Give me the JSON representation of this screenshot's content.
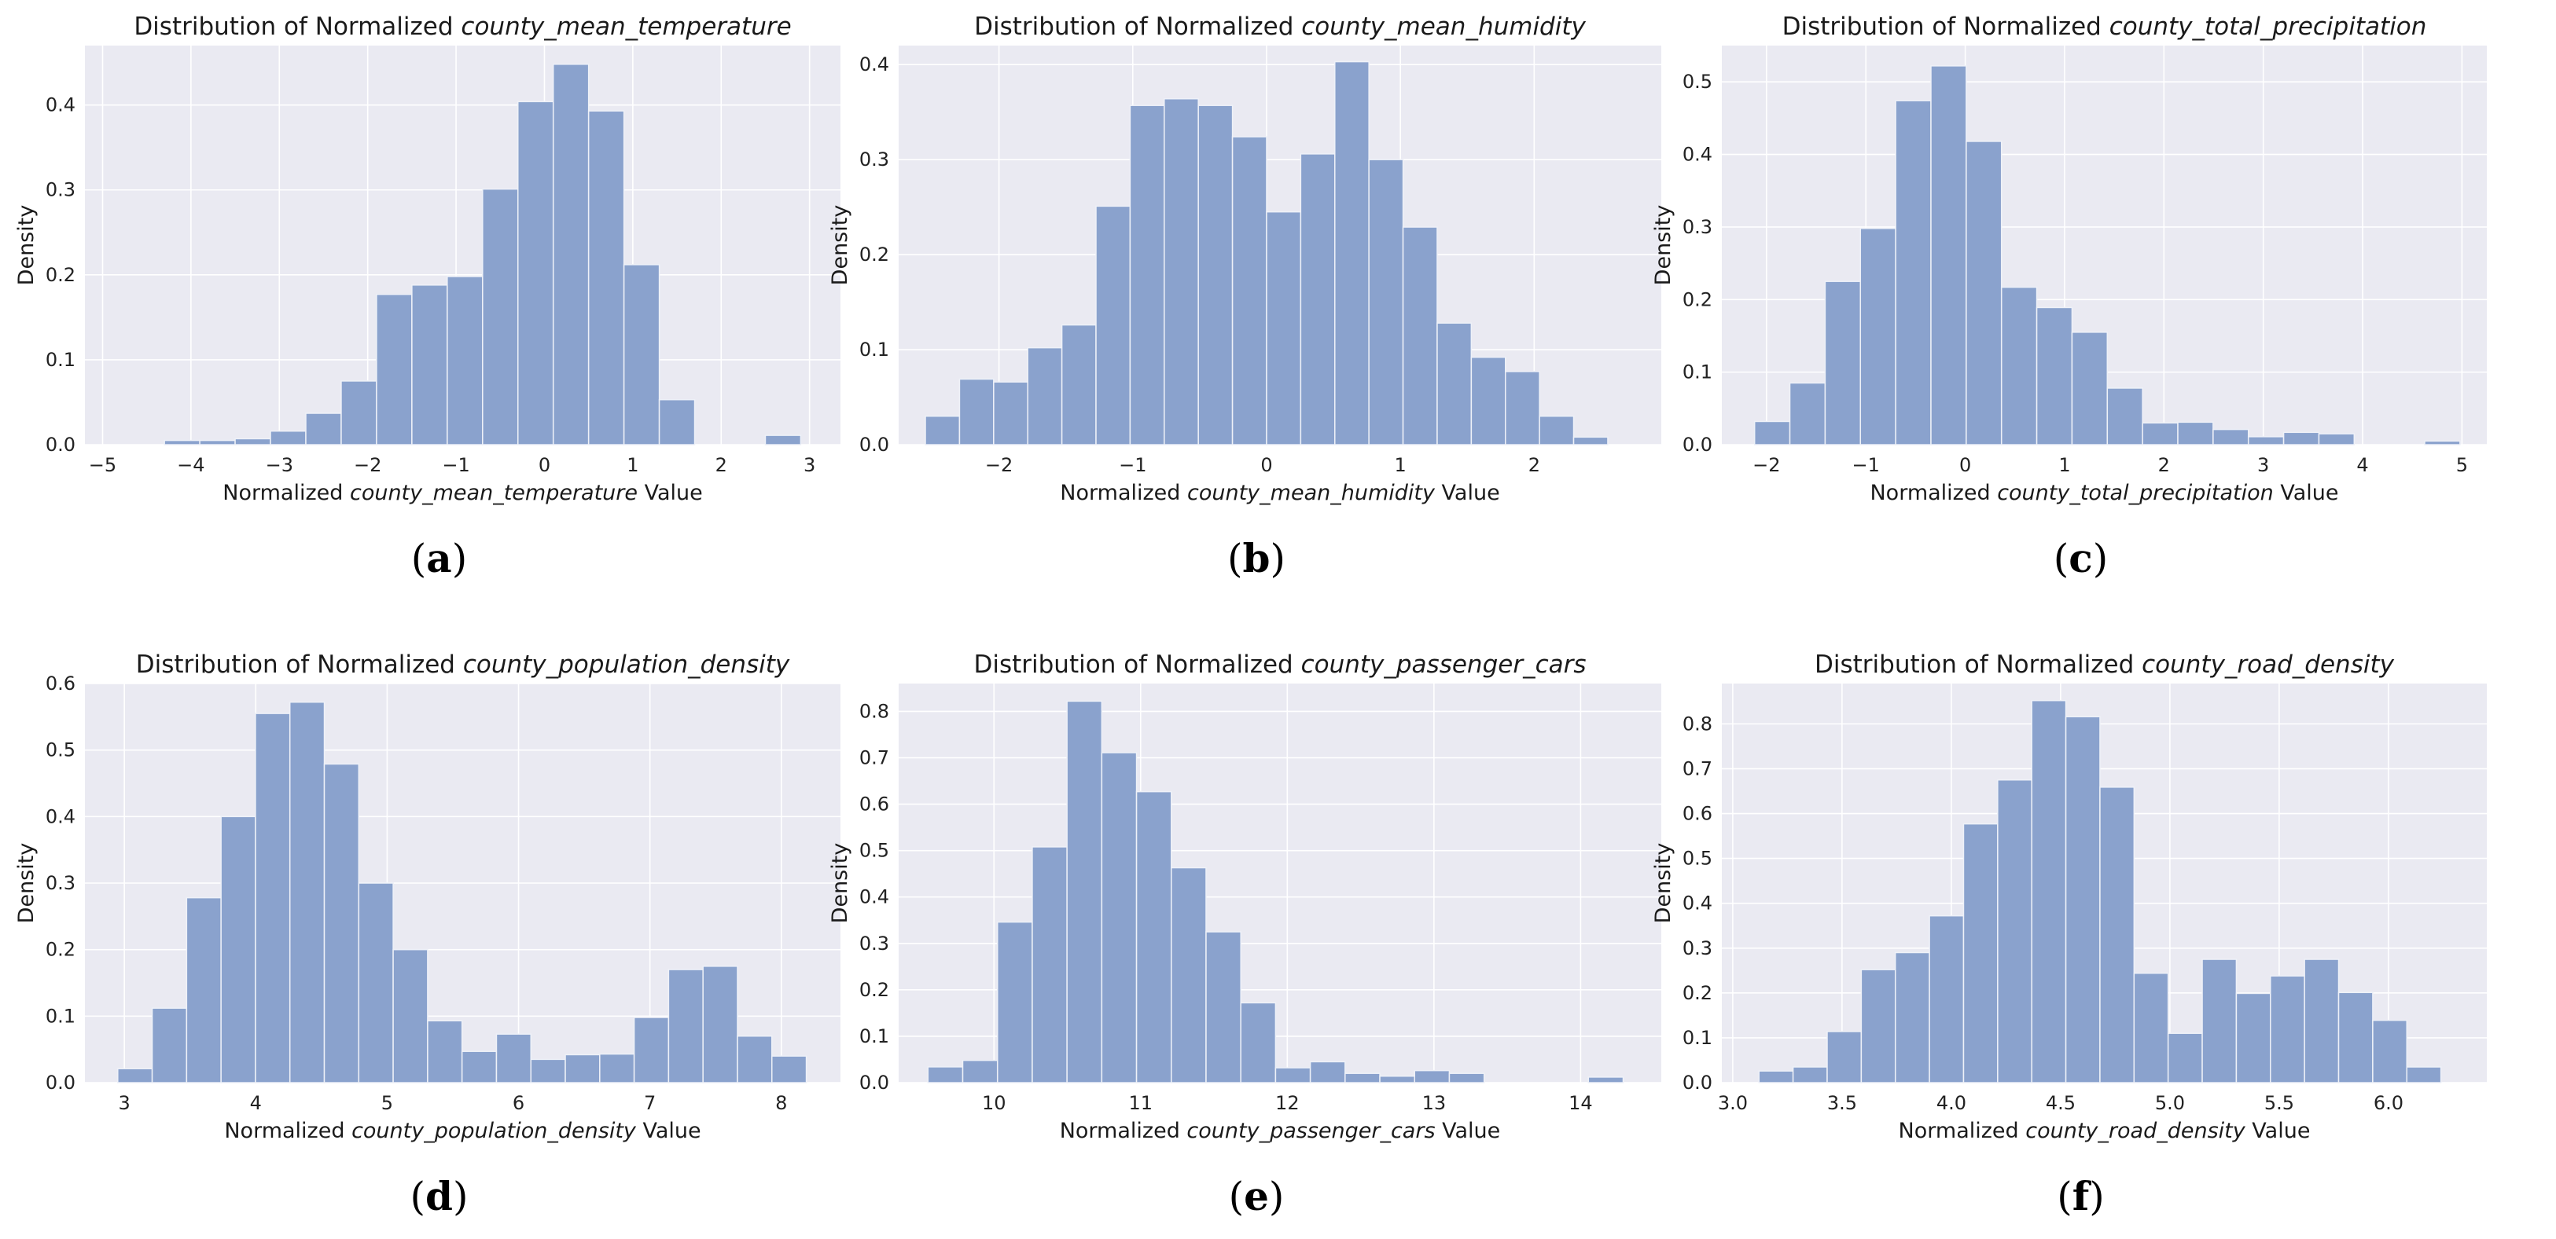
{
  "style": {
    "plot_bg": "#eaeaf2",
    "grid": "#ffffff",
    "bar_fill": "#8aa2cd",
    "bar_edge": "#eef1f8"
  },
  "common": {
    "title_prefix": "Distribution of Normalized ",
    "xlabel_prefix": "Normalized ",
    "xlabel_suffix": " Value",
    "ylabel": "Density"
  },
  "chart_data": [
    {
      "type": "bar",
      "panel": "a",
      "variable": "county_mean_temperature",
      "title": "Distribution of Normalized county_mean_temperature",
      "xlabel": "Normalized county_mean_temperature Value",
      "ylabel": "Density",
      "xlim": [
        -5.2,
        3.35
      ],
      "ylim": [
        0,
        0.47
      ],
      "xticks": [
        -5,
        -4,
        -3,
        -2,
        -1,
        0,
        1,
        2,
        3
      ],
      "yticks": [
        0.0,
        0.1,
        0.2,
        0.3,
        0.4
      ],
      "bin_start": -4.3,
      "bin_width": 0.4,
      "values": [
        0.005,
        0.005,
        0.007,
        0.016,
        0.037,
        0.075,
        0.177,
        0.188,
        0.198,
        0.301,
        0.404,
        0.448,
        0.393,
        0.212,
        0.053,
        0.0,
        0.0,
        0.011
      ]
    },
    {
      "type": "bar",
      "panel": "b",
      "variable": "county_mean_humidity",
      "title": "Distribution of Normalized county_mean_humidity",
      "xlabel": "Normalized county_mean_humidity Value",
      "ylabel": "Density",
      "xlim": [
        -2.75,
        2.95
      ],
      "ylim": [
        0,
        0.42
      ],
      "xticks": [
        -2,
        -1,
        0,
        1,
        2
      ],
      "yticks": [
        0.0,
        0.1,
        0.2,
        0.3,
        0.4
      ],
      "bin_start": -2.55,
      "bin_width": 0.255,
      "values": [
        0.03,
        0.069,
        0.066,
        0.102,
        0.126,
        0.251,
        0.357,
        0.364,
        0.357,
        0.324,
        0.245,
        0.306,
        0.403,
        0.3,
        0.229,
        0.128,
        0.092,
        0.077,
        0.03,
        0.008
      ]
    },
    {
      "type": "bar",
      "panel": "c",
      "variable": "county_total_precipitation",
      "title": "Distribution of Normalized county_total_precipitation",
      "xlabel": "Normalized county_total_precipitation Value",
      "ylabel": "Density",
      "xlim": [
        -2.45,
        5.25
      ],
      "ylim": [
        0,
        0.55
      ],
      "xticks": [
        -2,
        -1,
        0,
        1,
        2,
        3,
        4,
        5
      ],
      "yticks": [
        0.0,
        0.1,
        0.2,
        0.3,
        0.4,
        0.5
      ],
      "bin_start": -2.12,
      "bin_width": 0.355,
      "values": [
        0.032,
        0.085,
        0.225,
        0.298,
        0.474,
        0.522,
        0.418,
        0.217,
        0.189,
        0.155,
        0.078,
        0.03,
        0.031,
        0.021,
        0.011,
        0.017,
        0.015,
        0.0,
        0.0,
        0.005
      ]
    },
    {
      "type": "bar",
      "panel": "d",
      "variable": "county_population_density",
      "title": "Distribution of Normalized county_population_density",
      "xlabel": "Normalized county_population_density Value",
      "ylabel": "Density",
      "xlim": [
        2.7,
        8.45
      ],
      "ylim": [
        0,
        0.6
      ],
      "xticks": [
        3,
        4,
        5,
        6,
        7,
        8
      ],
      "yticks": [
        0.0,
        0.1,
        0.2,
        0.3,
        0.4,
        0.5,
        0.6
      ],
      "bin_start": 2.95,
      "bin_width": 0.262,
      "values": [
        0.021,
        0.112,
        0.278,
        0.4,
        0.555,
        0.572,
        0.479,
        0.3,
        0.2,
        0.093,
        0.047,
        0.073,
        0.035,
        0.042,
        0.043,
        0.098,
        0.17,
        0.175,
        0.07,
        0.04
      ]
    },
    {
      "type": "bar",
      "panel": "e",
      "variable": "county_passenger_cars",
      "title": "Distribution of Normalized county_passenger_cars",
      "xlabel": "Normalized county_passenger_cars Value",
      "ylabel": "Density",
      "xlim": [
        9.35,
        14.55
      ],
      "ylim": [
        0,
        0.86
      ],
      "xticks": [
        10,
        11,
        12,
        13,
        14
      ],
      "yticks": [
        0.0,
        0.1,
        0.2,
        0.3,
        0.4,
        0.5,
        0.6,
        0.7,
        0.8
      ],
      "bin_start": 9.55,
      "bin_width": 0.237,
      "values": [
        0.034,
        0.048,
        0.346,
        0.508,
        0.822,
        0.711,
        0.627,
        0.463,
        0.325,
        0.172,
        0.032,
        0.045,
        0.02,
        0.014,
        0.026,
        0.02,
        0.0,
        0.0,
        0.0,
        0.012
      ]
    },
    {
      "type": "bar",
      "panel": "f",
      "variable": "county_road_density",
      "title": "Distribution of Normalized county_road_density",
      "xlabel": "Normalized county_road_density Value",
      "ylabel": "Density",
      "xlim": [
        2.95,
        6.45
      ],
      "ylim": [
        0,
        0.89
      ],
      "xticks": [
        3.0,
        3.5,
        4.0,
        4.5,
        5.0,
        5.5,
        6.0
      ],
      "yticks": [
        0.0,
        0.1,
        0.2,
        0.3,
        0.4,
        0.5,
        0.6,
        0.7,
        0.8
      ],
      "bin_start": 3.12,
      "bin_width": 0.156,
      "values": [
        0.026,
        0.035,
        0.114,
        0.252,
        0.29,
        0.372,
        0.577,
        0.675,
        0.852,
        0.816,
        0.659,
        0.244,
        0.11,
        0.275,
        0.199,
        0.238,
        0.275,
        0.201,
        0.139,
        0.035
      ]
    }
  ],
  "captions": [
    "(a)",
    "(b)",
    "(c)",
    "(d)",
    "(e)",
    "(f)"
  ]
}
